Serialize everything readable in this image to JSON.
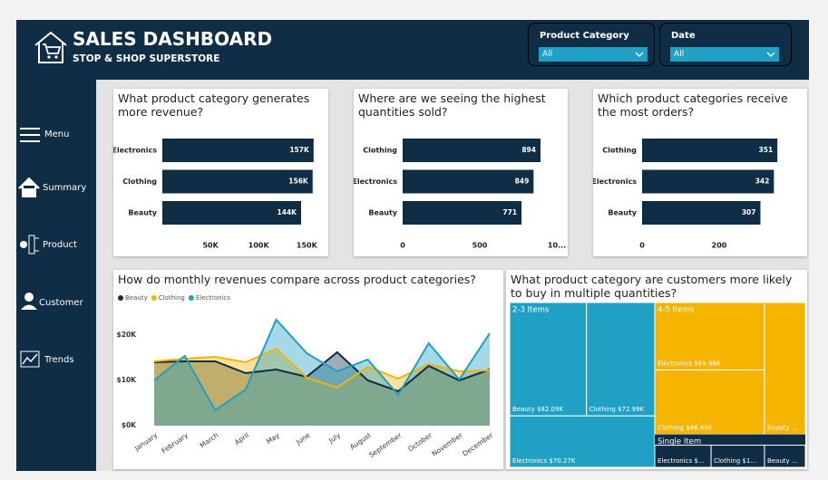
{
  "header": {
    "title": "SALES DASHBOARD",
    "subtitle": "STOP &  SHOP SUPERSTORE"
  },
  "filters": [
    {
      "label": "Product Category",
      "value": "All"
    },
    {
      "label": "Date",
      "value": "All"
    }
  ],
  "nav": [
    "Menu",
    "Summary",
    "Product",
    "Customer",
    "Trends"
  ],
  "chart_data": [
    {
      "type": "bar",
      "orientation": "horizontal",
      "title": "What product category generates more revenue?",
      "categories": [
        "Electronics",
        "Clothing",
        "Beauty"
      ],
      "values": [
        157000,
        156000,
        144000
      ],
      "value_labels": [
        "157K",
        "156K",
        "144K"
      ],
      "color": "#0f2d45",
      "xlim": [
        0,
        160000
      ],
      "xticks": [
        {
          "value": 50000,
          "label": "50K"
        },
        {
          "value": 100000,
          "label": "100K"
        },
        {
          "value": 150000,
          "label": "150K"
        }
      ]
    },
    {
      "type": "bar",
      "orientation": "horizontal",
      "title": "Where are we seeing the highest quantities sold?",
      "categories": [
        "Clothing",
        "Electronics",
        "Beauty"
      ],
      "values": [
        894,
        849,
        771
      ],
      "color": "#0f2d45",
      "xlim": [
        0,
        1000
      ],
      "xticks": [
        0,
        500,
        {
          "value": 1000,
          "label": "10..."
        }
      ]
    },
    {
      "type": "bar",
      "orientation": "horizontal",
      "title": "Which product categories receive the most orders?",
      "categories": [
        "Clothing",
        "Electronics",
        "Beauty"
      ],
      "values": [
        351,
        342,
        307
      ],
      "color": "#0f2d45",
      "xlim": [
        0,
        400
      ],
      "xticks": [
        0,
        200
      ]
    },
    {
      "type": "area",
      "title": "How do monthly revenues compare across product categories?",
      "categories": [
        "January",
        "February",
        "March",
        "April",
        "May",
        "June",
        "July",
        "August",
        "September",
        "October",
        "November",
        "December"
      ],
      "series": [
        {
          "name": "Beauty",
          "color": "#0f2d45",
          "values": [
            14000,
            14200,
            14200,
            11600,
            12400,
            10800,
            16200,
            10000,
            7600,
            13200,
            10000,
            12400
          ]
        },
        {
          "name": "Clothing",
          "color": "#f5b400",
          "values": [
            14200,
            14800,
            15200,
            14000,
            17000,
            10600,
            8400,
            13000,
            10400,
            13600,
            12000,
            12200
          ]
        },
        {
          "name": "Electronics",
          "color": "#1fa0c4",
          "values": [
            10000,
            15400,
            3400,
            8000,
            23400,
            16000,
            12000,
            14600,
            6800,
            18200,
            10200,
            20400
          ]
        }
      ],
      "ylim": [
        0,
        25000
      ],
      "yticks": [
        {
          "value": 0,
          "label": "$0K"
        },
        {
          "value": 10000,
          "label": "$10K"
        },
        {
          "value": 20000,
          "label": "$20K"
        }
      ],
      "legend": "top-left"
    },
    {
      "type": "treemap",
      "title": "What product category are customers more likely to buy in multiple quantities?",
      "groups": [
        {
          "name": "2-3 Items",
          "color": "#1fa0c4",
          "children": [
            {
              "label": "Beauty $82.09K",
              "value": 82090
            },
            {
              "label": "Clothing $72.99K",
              "value": 72990
            },
            {
              "label": "Electronics $70.27K",
              "value": 70270
            }
          ]
        },
        {
          "name": "4-5 Items",
          "color": "#f5b400",
          "children": [
            {
              "label": "Electronics $69.68K",
              "value": 69680
            },
            {
              "label": "Clothing $66.48K",
              "value": 66480
            },
            {
              "label": "Beauty ...",
              "value": 50800
            }
          ]
        },
        {
          "name": "Single Item",
          "color": "#0f2d45",
          "children": [
            {
              "label": "Electronics $...",
              "value": 17500
            },
            {
              "label": "Clothing $1...",
              "value": 16600
            },
            {
              "label": "Beauty ...",
              "value": 12700
            }
          ]
        }
      ]
    }
  ]
}
